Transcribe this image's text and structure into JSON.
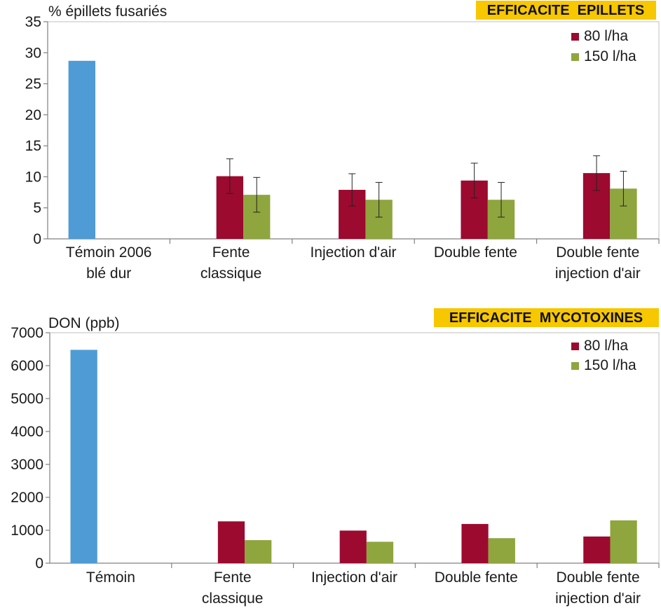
{
  "colors": {
    "temoin": "#4f9bd5",
    "s80": "#9c0a2f",
    "s150": "#8fa53e",
    "title_bg": "#f7c700",
    "axis": "#808080",
    "plot_border": "#bfbfbf",
    "error_bar": "#222222"
  },
  "chart_data": [
    {
      "type": "bar",
      "title": "EFFICACITE  EPILLETS",
      "ylabel": "% épillets fusariés",
      "xlabel": "",
      "ylim": [
        0,
        35
      ],
      "yticks": [
        0,
        5,
        10,
        15,
        20,
        25,
        30,
        35
      ],
      "grid": false,
      "legend_position": "top-right",
      "categories": [
        [
          "Témoin 2006",
          "blé dur"
        ],
        [
          "Fente",
          "classique"
        ],
        [
          "Injection d'air"
        ],
        [
          "Double fente"
        ],
        [
          "Double fente",
          "injection d'air"
        ]
      ],
      "series": [
        {
          "key": "temoin",
          "values": [
            28.7,
            null,
            null,
            null,
            null
          ],
          "errors": [
            null,
            null,
            null,
            null,
            null
          ]
        },
        {
          "key": "s80",
          "name": "80 l/ha",
          "values": [
            null,
            10.1,
            7.9,
            9.4,
            10.6
          ],
          "errors": [
            null,
            2.8,
            2.6,
            2.8,
            2.8
          ]
        },
        {
          "key": "s150",
          "name": "150 l/ha",
          "values": [
            null,
            7.1,
            6.3,
            6.3,
            8.1
          ],
          "errors": [
            null,
            2.8,
            2.8,
            2.8,
            2.8
          ]
        }
      ]
    },
    {
      "type": "bar",
      "title": "EFFICACITE  MYCOTOXINES",
      "ylabel": "DON (ppb)",
      "xlabel": "",
      "ylim": [
        0,
        7000
      ],
      "yticks": [
        0,
        1000,
        2000,
        3000,
        4000,
        5000,
        6000,
        7000
      ],
      "grid": false,
      "legend_position": "top-right",
      "categories": [
        [
          "Témoin"
        ],
        [
          "Fente",
          "classique"
        ],
        [
          "Injection d'air"
        ],
        [
          "Double fente"
        ],
        [
          "Double fente",
          "injection d'air"
        ]
      ],
      "series": [
        {
          "key": "temoin",
          "values": [
            6480,
            null,
            null,
            null,
            null
          ]
        },
        {
          "key": "s80",
          "name": "80 l/ha",
          "values": [
            null,
            1270,
            990,
            1190,
            810
          ]
        },
        {
          "key": "s150",
          "name": "150 l/ha",
          "values": [
            null,
            700,
            650,
            760,
            1300
          ]
        }
      ]
    }
  ]
}
